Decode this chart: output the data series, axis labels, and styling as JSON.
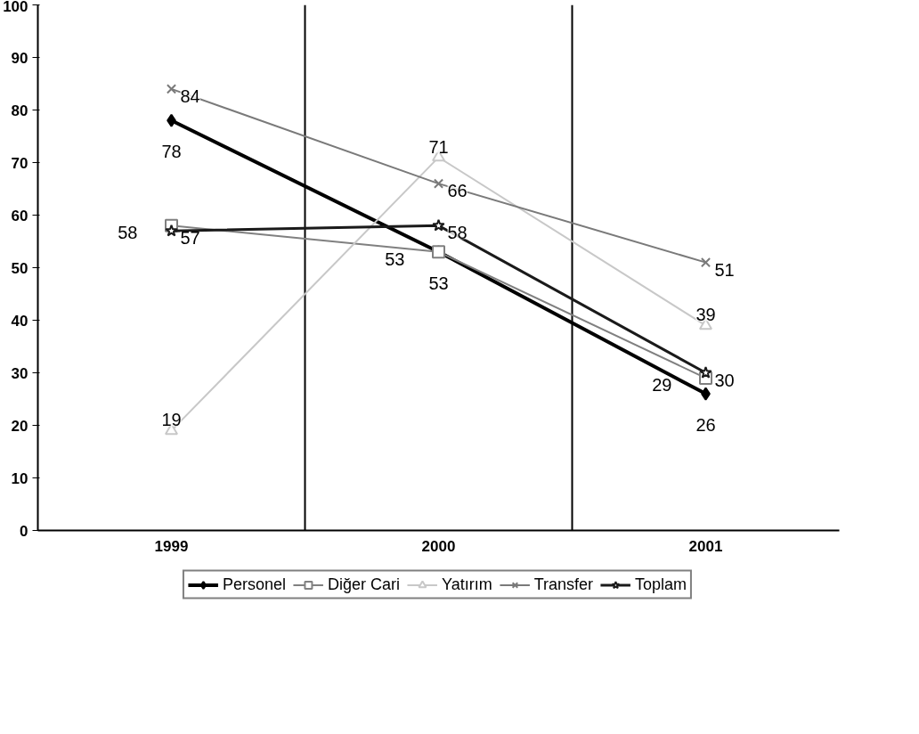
{
  "chart_data": {
    "type": "line",
    "categories": [
      "1999",
      "2000",
      "2001"
    ],
    "series": [
      {
        "name": "Personel",
        "color": "#000000",
        "marker": "diamond",
        "values": [
          78,
          53,
          26
        ]
      },
      {
        "name": "Diğer Cari",
        "color": "#808080",
        "marker": "square",
        "values": [
          58,
          53,
          29
        ]
      },
      {
        "name": "Yatırım",
        "color": "#c8c8c8",
        "marker": "triangle",
        "values": [
          19,
          71,
          39
        ]
      },
      {
        "name": "Transfer",
        "color": "#7a7a7a",
        "marker": "cross",
        "values": [
          84,
          66,
          51
        ]
      },
      {
        "name": "Toplam",
        "color": "#1a1a1a",
        "marker": "star",
        "values": [
          57,
          58,
          30
        ]
      }
    ],
    "ylim": [
      0,
      100
    ],
    "yticks": [
      0,
      10,
      20,
      30,
      40,
      50,
      60,
      70,
      80,
      90,
      100
    ],
    "grid": "x",
    "legend": "bottom",
    "data_labels": true,
    "line_style": "solid"
  }
}
